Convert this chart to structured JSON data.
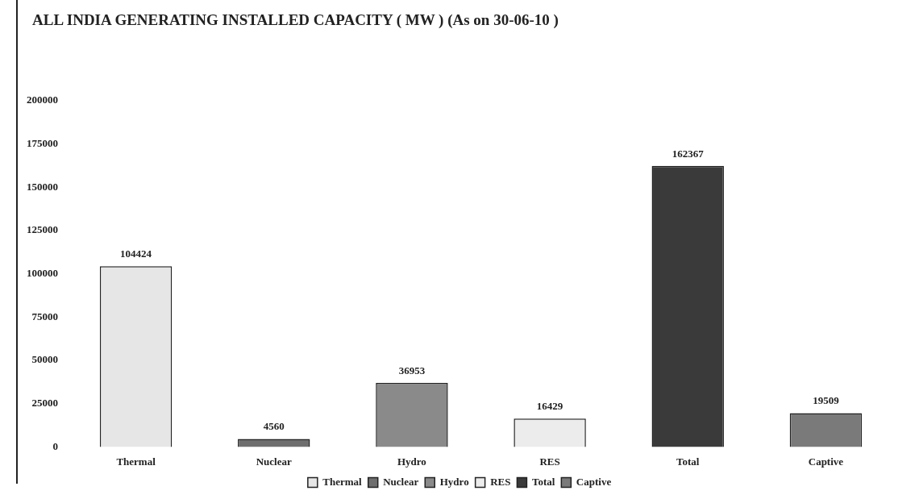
{
  "chart_data": {
    "type": "bar",
    "title": "ALL INDIA GENERATING INSTALLED CAPACITY ( MW ) (As on 30-06-10 )",
    "categories": [
      "Thermal",
      "Nuclear",
      "Hydro",
      "RES",
      "Total",
      "Captive"
    ],
    "series": [
      {
        "name": "Thermal",
        "color": "#e6e6e6",
        "values": [
          104424,
          null,
          null,
          null,
          null,
          null
        ]
      },
      {
        "name": "Nuclear",
        "color": "#6e6e6e",
        "values": [
          null,
          4560,
          null,
          null,
          null,
          null
        ]
      },
      {
        "name": "Hydro",
        "color": "#8a8a8a",
        "values": [
          null,
          null,
          36953,
          null,
          null,
          null
        ]
      },
      {
        "name": "RES",
        "color": "#ececec",
        "values": [
          null,
          null,
          null,
          16429,
          null,
          null
        ]
      },
      {
        "name": "Total",
        "color": "#3a3a3a",
        "values": [
          null,
          null,
          null,
          null,
          162367,
          null
        ]
      },
      {
        "name": "Captive",
        "color": "#7a7a7a",
        "values": [
          null,
          null,
          null,
          null,
          null,
          19509
        ]
      }
    ],
    "ylim": [
      0,
      200000
    ],
    "yticks": [
      0,
      25000,
      50000,
      75000,
      100000,
      125000,
      150000,
      175000,
      200000
    ],
    "data_labels": true,
    "legend": "bottom",
    "grid": false
  }
}
